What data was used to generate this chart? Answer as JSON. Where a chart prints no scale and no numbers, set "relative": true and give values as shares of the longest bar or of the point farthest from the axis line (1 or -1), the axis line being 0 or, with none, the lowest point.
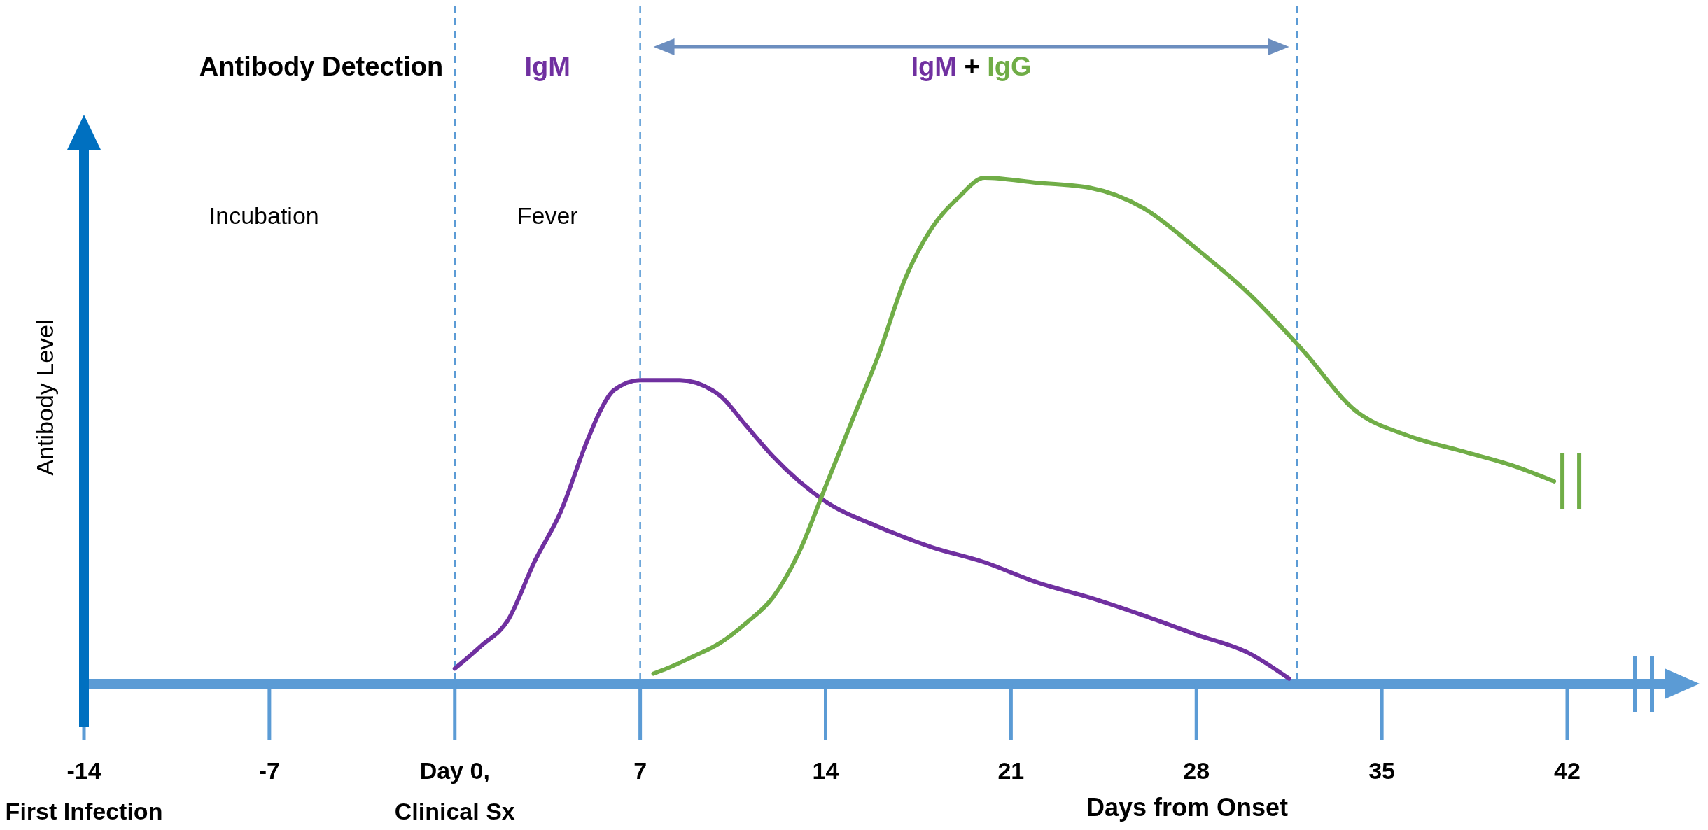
{
  "chart_data": {
    "type": "line",
    "relative": true,
    "xlabel": "Days from Onset",
    "ylabel": "Antibody Level",
    "xlim": [
      -14,
      42
    ],
    "xticks": [
      {
        "value": -14,
        "label": "-14\nFirst Infection"
      },
      {
        "value": -7,
        "label": "-7"
      },
      {
        "value": 0,
        "label": "Day 0,\nClinical Sx"
      },
      7,
      14,
      21,
      28,
      35,
      42
    ],
    "series": [
      {
        "name": "IgM",
        "color": "#7030a0",
        "x": [
          0,
          1,
          2,
          3,
          4,
          5,
          5.5,
          6,
          7,
          8.5,
          10,
          11,
          12,
          13,
          14,
          16,
          18,
          20,
          22,
          24,
          26,
          28,
          30,
          31.5
        ],
        "values": [
          0.03,
          0.075,
          0.125,
          0.24,
          0.34,
          0.48,
          0.54,
          0.58,
          0.6,
          0.6,
          0.57,
          0.51,
          0.45,
          0.4,
          0.36,
          0.31,
          0.27,
          0.24,
          0.2,
          0.17,
          0.135,
          0.097,
          0.06,
          0.01
        ]
      },
      {
        "name": "IgG",
        "color": "#70ad47",
        "x": [
          7.5,
          8,
          9,
          10,
          11,
          12,
          13,
          14,
          15,
          16,
          17,
          18,
          19,
          20,
          22,
          24,
          26,
          28,
          30,
          32,
          34,
          36,
          38,
          40,
          41.5
        ],
        "values": [
          0.02,
          0.03,
          0.054,
          0.08,
          0.12,
          0.17,
          0.26,
          0.39,
          0.52,
          0.65,
          0.8,
          0.9,
          0.96,
          1,
          0.99,
          0.98,
          0.94,
          0.86,
          0.77,
          0.66,
          0.54,
          0.49,
          0.46,
          0.43,
          0.4
        ]
      }
    ],
    "ref_lines": [
      {
        "axis": "x",
        "value": 0,
        "color": "#5b9bd5",
        "line_style": "dashed"
      },
      {
        "axis": "x",
        "value": 7,
        "color": "#5b9bd5",
        "line_style": "dashed"
      },
      {
        "axis": "x",
        "value": 31.8,
        "color": "#5b9bd5",
        "line_style": "dashed"
      }
    ],
    "annotations": [
      "Antibody Detection",
      "+",
      "Incubation",
      "Fever"
    ],
    "legend": false,
    "grid": false,
    "line_style": "solid",
    "marker": "none"
  }
}
